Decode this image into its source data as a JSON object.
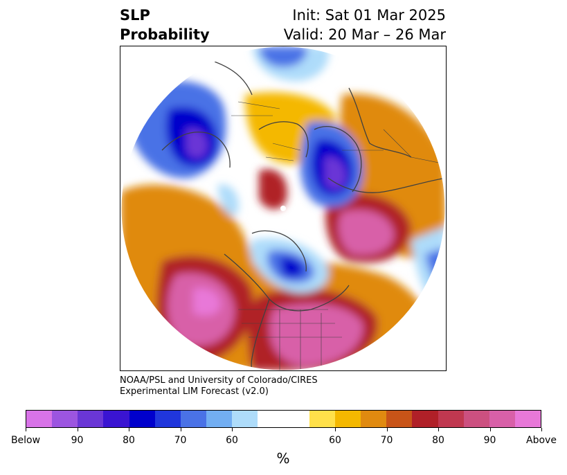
{
  "header": {
    "left_line1": "SLP",
    "left_line2": "Probability",
    "right_line1": "Init: Sat 01 Mar 2025",
    "right_line2": "Valid: 20 Mar – 26 Mar"
  },
  "credit": {
    "line1": "NOAA/PSL and University of Colorado/CIRES",
    "line2": "Experimental LIM Forecast (v2.0)"
  },
  "colorbar": {
    "unit_label": "%",
    "ticks": [
      "Below",
      "90",
      "80",
      "70",
      "60",
      "60",
      "70",
      "80",
      "90",
      "Above"
    ],
    "colors": [
      "#d873e8",
      "#9c55e0",
      "#6a36d6",
      "#3a14d2",
      "#0000cc",
      "#2036dc",
      "#4a72e6",
      "#72aef2",
      "#aedcfa",
      "#ffffff",
      "#ffffff",
      "#ffe04a",
      "#f4b800",
      "#e08a10",
      "#c85418",
      "#b02028",
      "#c03850",
      "#cc5080",
      "#d860a8",
      "#e878d8"
    ]
  },
  "map": {
    "projection": "north-polar-stereographic",
    "field": "sea-level-pressure-probability",
    "colors": {
      "below_strong": "#0000cc",
      "below_purple": "#6a36d6",
      "below_mid": "#4a72e6",
      "below_light": "#aedcfa",
      "above_light": "#ffe04a",
      "above_gold": "#f4b800",
      "above_orange": "#e08a10",
      "above_red": "#b02028",
      "above_magenta": "#d860a8",
      "above_pink": "#e878d8",
      "coastline": "#404040"
    }
  }
}
